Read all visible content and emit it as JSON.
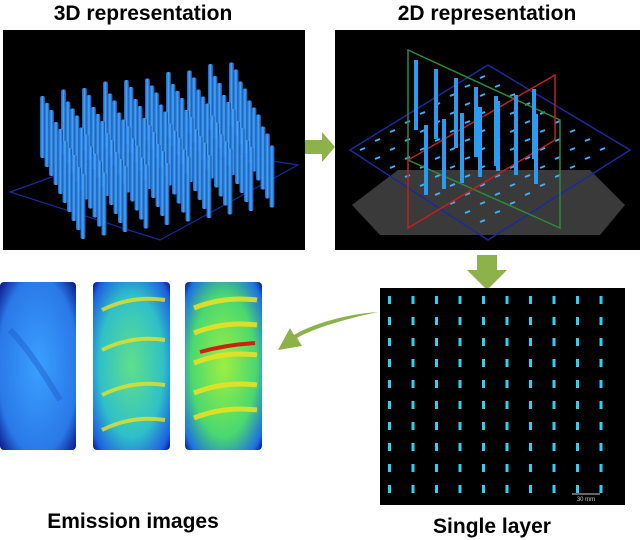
{
  "panels": {
    "view_3d": {
      "title": "3D representation"
    },
    "view_2d": {
      "title": "2D representation"
    },
    "single_layer": {
      "title": "Single layer",
      "scale_bar": "30 mm"
    },
    "emission": {
      "title": "Emission images"
    }
  }
}
